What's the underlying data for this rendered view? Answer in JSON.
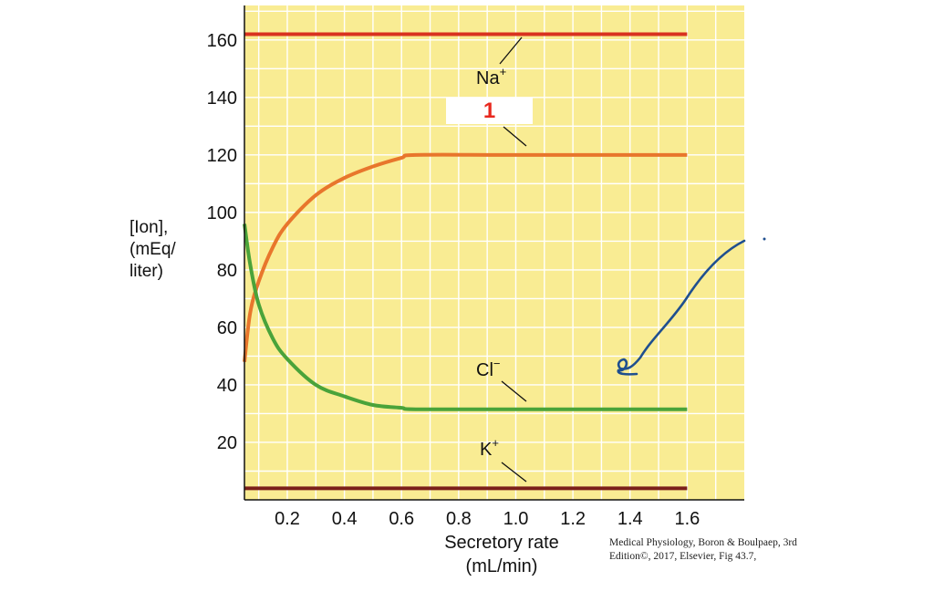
{
  "chart_data": {
    "type": "line",
    "title": "",
    "ylabel_lines": [
      "[Ion],",
      "(mEq/",
      "liter)"
    ],
    "xlabel_lines": [
      "Secretory rate",
      "(mL/min)"
    ],
    "xlim": [
      0.05,
      1.8
    ],
    "ylim": [
      0,
      172
    ],
    "x_ticks": [
      "0.2",
      "0.4",
      "0.6",
      "0.8",
      "1.0",
      "1.2",
      "1.4",
      "1.6"
    ],
    "x_tick_values": [
      0.2,
      0.4,
      0.6,
      0.8,
      1.0,
      1.2,
      1.4,
      1.6
    ],
    "y_ticks": [
      "20",
      "40",
      "60",
      "80",
      "100",
      "120",
      "140",
      "160"
    ],
    "y_tick_values": [
      20,
      40,
      60,
      80,
      100,
      120,
      140,
      160
    ],
    "grid": true,
    "background": "#f9ec93",
    "series": [
      {
        "name": "Na+",
        "base": "Na",
        "sup": "+",
        "color": "#d9321f",
        "x": [
          0.05,
          1.6
        ],
        "y": [
          162,
          162
        ]
      },
      {
        "name": "1",
        "color": "#e8762c",
        "x": [
          0.05,
          0.07,
          0.1,
          0.15,
          0.2,
          0.3,
          0.4,
          0.5,
          0.6,
          0.65,
          1.0,
          1.6
        ],
        "y": [
          48,
          65,
          76,
          88,
          96,
          106,
          112,
          116,
          119,
          120,
          120,
          120
        ]
      },
      {
        "name": "Cl-",
        "base": "Cl",
        "sup": "−",
        "color": "#4aa33a",
        "x": [
          0.05,
          0.07,
          0.1,
          0.15,
          0.2,
          0.3,
          0.4,
          0.5,
          0.6,
          0.65,
          1.0,
          1.6
        ],
        "y": [
          96,
          82,
          68,
          56,
          49,
          40,
          36,
          33,
          32,
          31.5,
          31.5,
          31.5
        ]
      },
      {
        "name": "K+",
        "base": "K",
        "sup": "+",
        "color": "#7a1f1a",
        "x": [
          0.05,
          1.6
        ],
        "y": [
          4,
          4
        ]
      }
    ],
    "annotations": {
      "blank_label": "1",
      "na_label": "Na+",
      "cl_label": "Cl-",
      "k_label": "K+"
    }
  },
  "credit_lines": [
    "Medical Physiology, Boron & Boulpaep, 3rd",
    "Edition©, 2017, Elsevier, Fig 43.7,"
  ],
  "colors": {
    "grid": "#ffffff",
    "axis": "#111111",
    "annotation_ink": "#1f4f8f"
  }
}
